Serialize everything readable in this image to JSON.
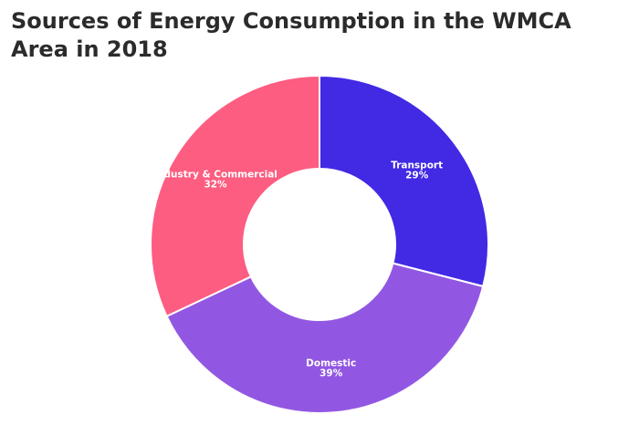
{
  "chart_data": {
    "type": "pie",
    "title": "Sources of Energy Consumption in the WMCA Area in 2018",
    "slices": [
      {
        "label": "Transport",
        "value": 29,
        "display": "29%",
        "color": "#4229e4"
      },
      {
        "label": "Domestic",
        "value": 39,
        "display": "39%",
        "color": "#9257e2"
      },
      {
        "label": "Industry & Commercial",
        "value": 32,
        "display": "32%",
        "color": "#fd5d80"
      }
    ],
    "donut": true,
    "legend": "none"
  }
}
